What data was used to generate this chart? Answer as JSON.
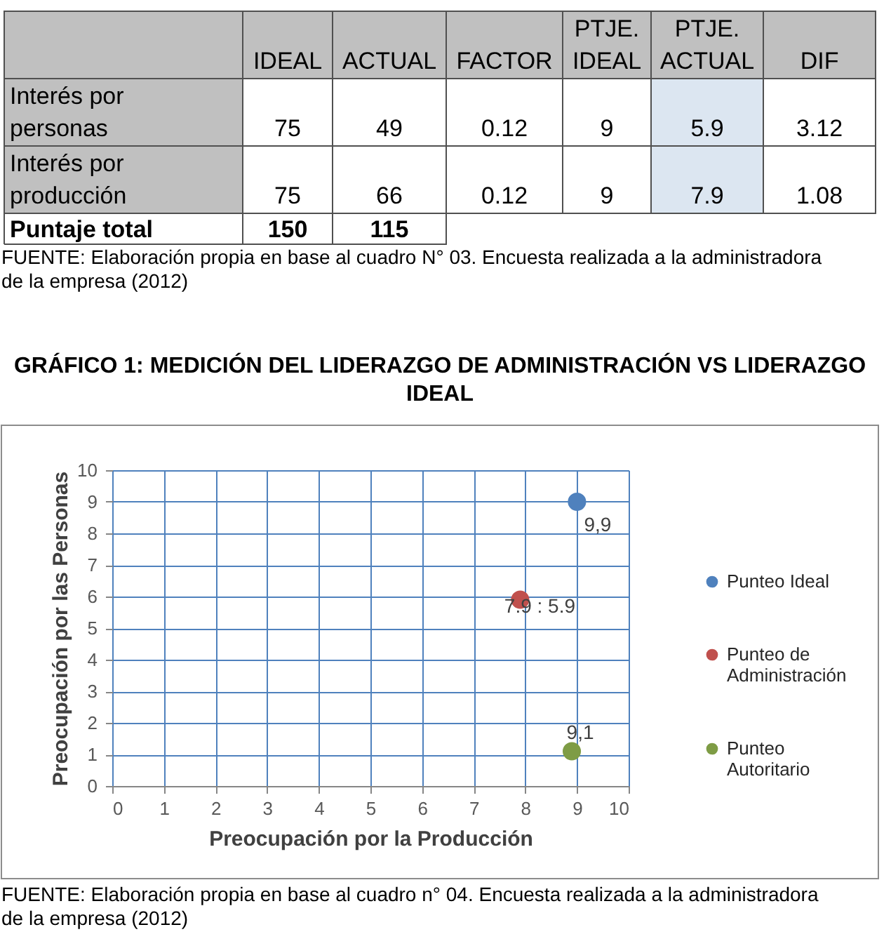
{
  "chart_data": [
    {
      "type": "heatmap",
      "categories": [
        "IDEAL",
        "ACTUAL",
        "FACTOR",
        "PTJE. IDEAL",
        "PTJE. ACTUAL",
        "DIF"
      ],
      "y_categories": [
        "Interés por personas",
        "Interés por producción",
        "Puntaje total"
      ],
      "cells": [
        [
          75,
          49,
          0.12,
          9,
          5.9,
          3.12
        ],
        [
          75,
          66,
          0.12,
          9,
          7.9,
          1.08
        ],
        [
          150,
          115,
          null,
          null,
          null,
          null
        ]
      ],
      "data_labels": true,
      "annotations": [
        "FUENTE: Elaboración propia en base al cuadro N° 03. Encuesta realizada a la administradora de la empresa (2012)"
      ]
    },
    {
      "type": "scatter",
      "title": "GRÁFICO 1: MEDICIÓN DEL LIDERAZGO DE ADMINISTRACIÓN VS LIDERAZGO IDEAL",
      "xlabel": "Preocupación por la Producción",
      "ylabel": "Preocupación por las Personas",
      "xlim": [
        0,
        10
      ],
      "ylim": [
        0,
        10
      ],
      "xticks": [
        0,
        1,
        2,
        3,
        4,
        5,
        6,
        7,
        8,
        9,
        10
      ],
      "yticks": [
        0,
        1,
        2,
        3,
        4,
        5,
        6,
        7,
        8,
        9,
        10
      ],
      "grid": true,
      "legend": "right",
      "marker": "circle",
      "series": [
        {
          "name": "Punteo Ideal",
          "color": "#4f81bd",
          "x": [
            9
          ],
          "values": [
            9
          ]
        },
        {
          "name": "Punteo de Administración",
          "color": "#c0504d",
          "x": [
            7.9
          ],
          "values": [
            5.9
          ]
        },
        {
          "name": "Punteo Autoritario",
          "color": "#7e9c45",
          "x": [
            8.9
          ],
          "values": [
            1.1
          ]
        }
      ],
      "annotations": [
        {
          "text": "9,9",
          "x": 9,
          "y": 9
        },
        {
          "text": "7.9 : 5.9",
          "x": 7.9,
          "y": 5.9
        },
        {
          "text": "9,1",
          "x": 8.9,
          "y": 1.1
        },
        "FUENTE: Elaboración propia en base al cuadro n° 04. Encuesta realizada a la administradora de la empresa (2012)"
      ]
    }
  ]
}
